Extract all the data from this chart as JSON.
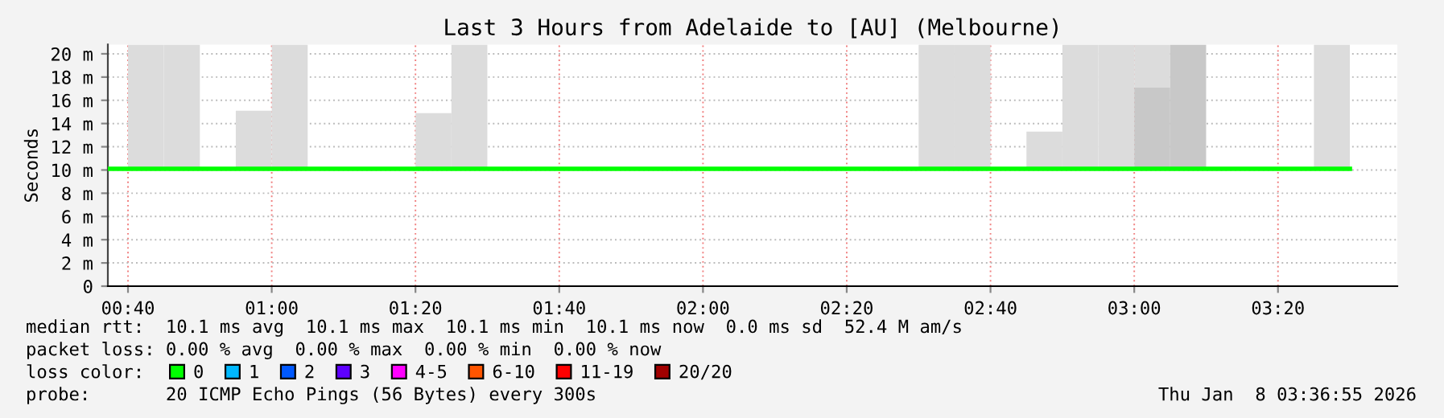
{
  "chart_data": {
    "type": "step",
    "title": "Last 3 Hours from Adelaide to [AU] (Melbourne)",
    "ylabel": "Seconds",
    "legend_title": "loss color:",
    "legend": "bottom",
    "grid": true,
    "xlim": [
      0.62,
      3.61
    ],
    "xticks": [
      {
        "value": 0.6667,
        "label": "00:40"
      },
      {
        "value": 1.0,
        "label": "01:00"
      },
      {
        "value": 1.3333,
        "label": "01:20"
      },
      {
        "value": 1.6667,
        "label": "01:40"
      },
      {
        "value": 2.0,
        "label": "02:00"
      },
      {
        "value": 2.3333,
        "label": "02:20"
      },
      {
        "value": 2.6667,
        "label": "02:40"
      },
      {
        "value": 3.0,
        "label": "03:00"
      },
      {
        "value": 3.3333,
        "label": "03:20"
      }
    ],
    "ylim": [
      0,
      20.8
    ],
    "yticks": [
      0,
      {
        "value": 2,
        "label": "2 m"
      },
      {
        "value": 4,
        "label": "4 m"
      },
      {
        "value": 6,
        "label": "6 m"
      },
      {
        "value": 8,
        "label": "8 m"
      },
      {
        "value": 10,
        "label": "10 m"
      },
      {
        "value": 12,
        "label": "12 m"
      },
      {
        "value": 14,
        "label": "14 m"
      },
      {
        "value": 16,
        "label": "16 m"
      },
      {
        "value": 18,
        "label": "18 m"
      },
      {
        "value": 20,
        "label": "20 m"
      }
    ],
    "series": [
      {
        "type": "bar",
        "color": "#dcdcdc",
        "x": [
          0.7083,
          0.7917,
          0.9583,
          1.0417,
          1.375,
          1.4583,
          2.5417,
          2.625,
          2.7917,
          2.875,
          2.9583,
          3.0417,
          3.4583
        ],
        "base": [
          10.1,
          10.1,
          10.1,
          10.1,
          10.1,
          10.1,
          10.1,
          10.1,
          10.1,
          10.1,
          10.1,
          17.1,
          10.1
        ],
        "values": [
          10.7,
          10.7,
          5.0,
          10.7,
          4.8,
          10.7,
          10.7,
          10.7,
          3.2,
          10.7,
          10.7,
          3.7,
          10.7
        ]
      },
      {
        "type": "bar",
        "color": "#c8c8c8",
        "x": [
          3.0417,
          3.125
        ],
        "base": [
          10.1,
          10.1
        ],
        "values": [
          7.0,
          10.7
        ]
      },
      {
        "name": "0",
        "color": "#00ff00",
        "x": [
          0.62,
          3.5
        ],
        "values": [
          10.1,
          10.1
        ]
      },
      {
        "name": "1",
        "color": "#00b8ff"
      },
      {
        "name": "2",
        "color": "#0059ff"
      },
      {
        "name": "3",
        "color": "#5e00ff"
      },
      {
        "name": "4-5",
        "color": "#ff00ff"
      },
      {
        "name": "6-10",
        "color": "#ff5500"
      },
      {
        "name": "11-19",
        "color": "#ff0000"
      },
      {
        "name": "20/20",
        "color": "#a10000"
      }
    ],
    "annotations": [
      "median rtt:  10.1 ms avg  10.1 ms max  10.1 ms min  10.1 ms now  0.0 ms sd  52.4 M am/s",
      "packet loss: 0.00 % avg  0.00 % max  0.00 % min  0.00 % now",
      "probe:       20 ICMP Echo Pings (56 Bytes) every 300s",
      "Thu Jan  8 03:36:55 2026"
    ]
  }
}
